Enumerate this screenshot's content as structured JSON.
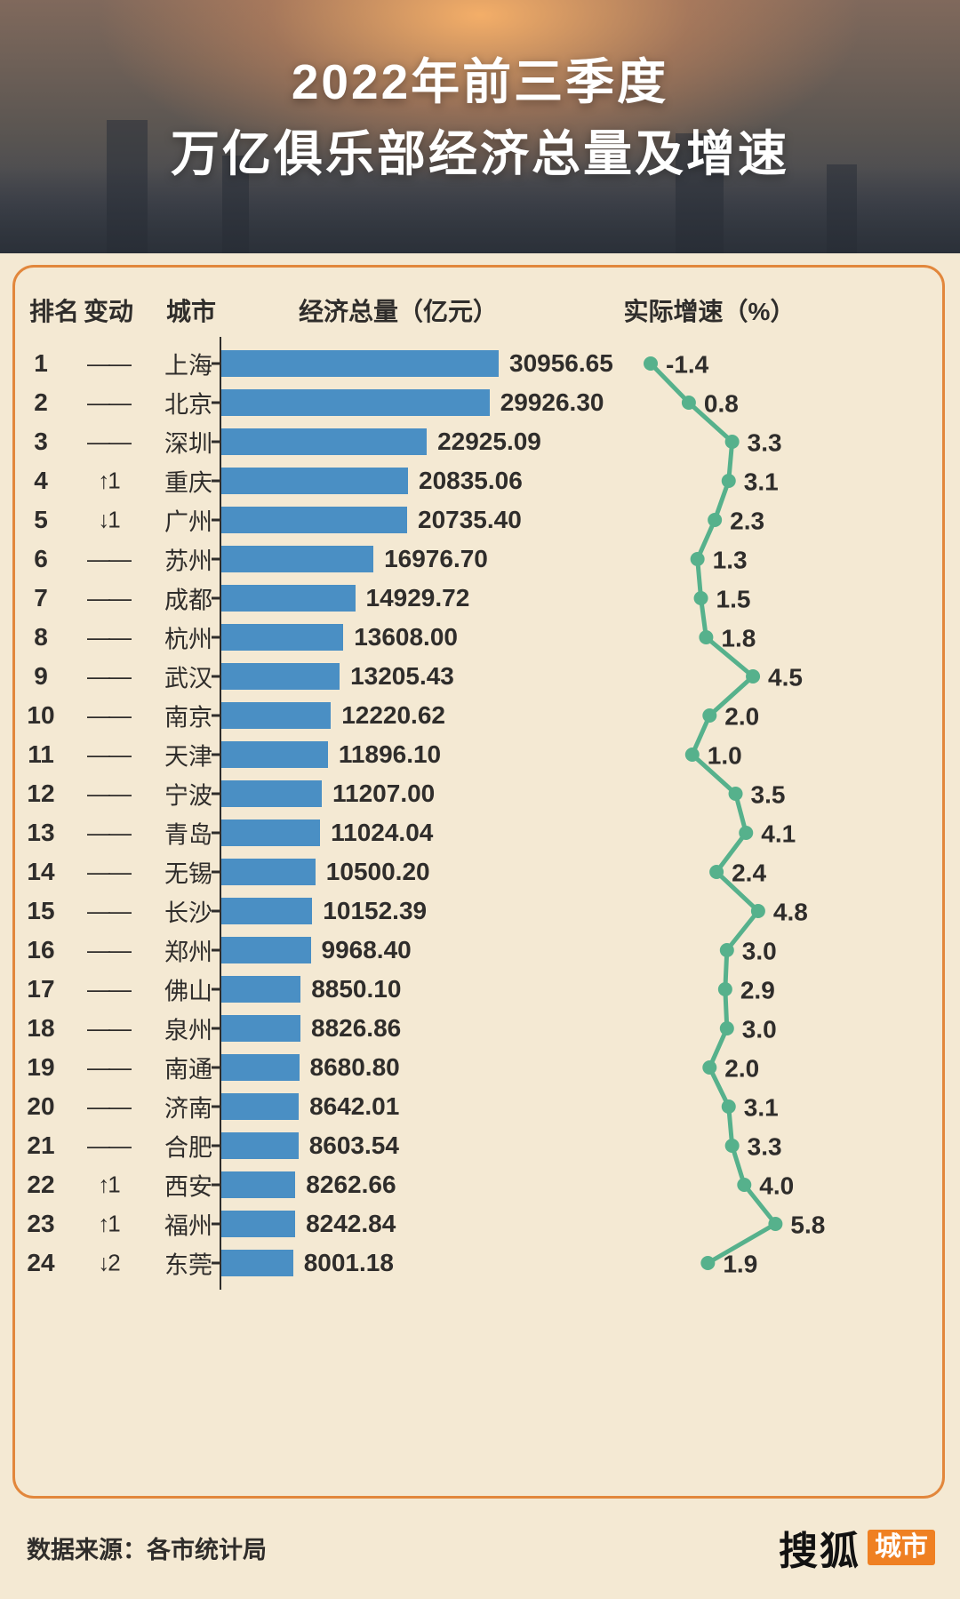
{
  "header": {
    "title_line1": "2022年前三季度",
    "title_line2": "万亿俱乐部经济总量及增速"
  },
  "table": {
    "col_rank": "排名",
    "col_change": "变动",
    "col_city": "城市",
    "col_gdp": "经济总量（亿元）",
    "col_growth": "实际增速（%）"
  },
  "footer": {
    "source": "数据来源：各市统计局",
    "logo_text": "搜狐",
    "logo_badge": "城市"
  },
  "colors": {
    "background": "#f4e9d3",
    "border": "#e2873c",
    "bar": "#4a8fc4",
    "line": "#56b18c",
    "text": "#2f2d2b",
    "badge": "#ef8022"
  },
  "chart_data": {
    "type": "bar",
    "overlay_type": "line",
    "title": "2022年前三季度万亿俱乐部经济总量及增速",
    "bar_series_name": "经济总量（亿元）",
    "line_series_name": "实际增速（%）",
    "bar_axis_start": 0,
    "rows": [
      {
        "rank": "1",
        "change": "——",
        "city": "上海",
        "gdp": "30956.65",
        "growth": "-1.4"
      },
      {
        "rank": "2",
        "change": "——",
        "city": "北京",
        "gdp": "29926.30",
        "growth": "0.8"
      },
      {
        "rank": "3",
        "change": "——",
        "city": "深圳",
        "gdp": "22925.09",
        "growth": "3.3"
      },
      {
        "rank": "4",
        "change": "↑1",
        "city": "重庆",
        "gdp": "20835.06",
        "growth": "3.1"
      },
      {
        "rank": "5",
        "change": "↓1",
        "city": "广州",
        "gdp": "20735.40",
        "growth": "2.3"
      },
      {
        "rank": "6",
        "change": "——",
        "city": "苏州",
        "gdp": "16976.70",
        "growth": "1.3"
      },
      {
        "rank": "7",
        "change": "——",
        "city": "成都",
        "gdp": "14929.72",
        "growth": "1.5"
      },
      {
        "rank": "8",
        "change": "——",
        "city": "杭州",
        "gdp": "13608.00",
        "growth": "1.8"
      },
      {
        "rank": "9",
        "change": "——",
        "city": "武汉",
        "gdp": "13205.43",
        "growth": "4.5"
      },
      {
        "rank": "10",
        "change": "——",
        "city": "南京",
        "gdp": "12220.62",
        "growth": "2.0"
      },
      {
        "rank": "11",
        "change": "——",
        "city": "天津",
        "gdp": "11896.10",
        "growth": "1.0"
      },
      {
        "rank": "12",
        "change": "——",
        "city": "宁波",
        "gdp": "11207.00",
        "growth": "3.5"
      },
      {
        "rank": "13",
        "change": "——",
        "city": "青岛",
        "gdp": "11024.04",
        "growth": "4.1"
      },
      {
        "rank": "14",
        "change": "——",
        "city": "无锡",
        "gdp": "10500.20",
        "growth": "2.4"
      },
      {
        "rank": "15",
        "change": "——",
        "city": "长沙",
        "gdp": "10152.39",
        "growth": "4.8"
      },
      {
        "rank": "16",
        "change": "——",
        "city": "郑州",
        "gdp": "9968.40",
        "growth": "3.0"
      },
      {
        "rank": "17",
        "change": "——",
        "city": "佛山",
        "gdp": "8850.10",
        "growth": "2.9"
      },
      {
        "rank": "18",
        "change": "——",
        "city": "泉州",
        "gdp": "8826.86",
        "growth": "3.0"
      },
      {
        "rank": "19",
        "change": "——",
        "city": "南通",
        "gdp": "8680.80",
        "growth": "2.0"
      },
      {
        "rank": "20",
        "change": "——",
        "city": "济南",
        "gdp": "8642.01",
        "growth": "3.1"
      },
      {
        "rank": "21",
        "change": "——",
        "city": "合肥",
        "gdp": "8603.54",
        "growth": "3.3"
      },
      {
        "rank": "22",
        "change": "↑1",
        "city": "西安",
        "gdp": "8262.66",
        "growth": "4.0"
      },
      {
        "rank": "23",
        "change": "↑1",
        "city": "福州",
        "gdp": "8242.84",
        "growth": "5.8"
      },
      {
        "rank": "24",
        "change": "↓2",
        "city": "东莞",
        "gdp": "8001.18",
        "growth": "1.9"
      }
    ]
  }
}
